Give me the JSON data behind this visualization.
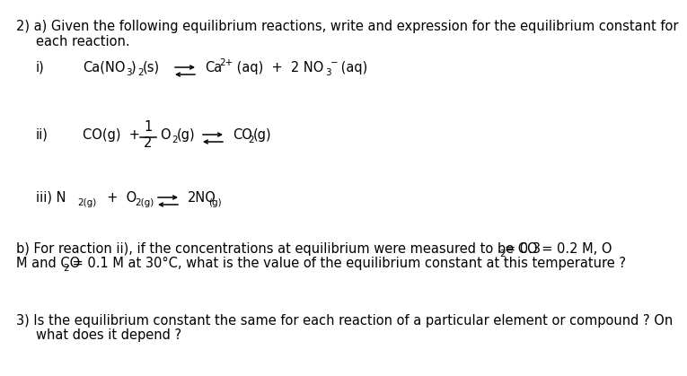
{
  "bg_color": "#ffffff",
  "fs": 10.5,
  "fs_sub": 7.5,
  "reactions": {
    "i_label": "i)",
    "ii_label": "ii)",
    "iii_label": "iii)"
  },
  "header1": "2) a) Given the following equilibrium reactions, write and expression for the equilibrium constant for",
  "header2": "    each reaction.",
  "b_line1": "b) For reaction ii), if the concentrations at equilibrium were measured to be CO ≈ 0.2 M, O",
  "b_line1_sub": "2",
  "b_line1_end": "≈ 0.3",
  "b_line2_start": "M and CO",
  "b_line2_sub": "2",
  "b_line2_end": " ≈ 0.1 M at 30°C, what is the value of the equilibrium constant at this temperature ?",
  "q3_line1": "3) Is the equilibrium constant the same for each reaction of a particular element or compound ? On",
  "q3_line2": "    what does it depend ?"
}
